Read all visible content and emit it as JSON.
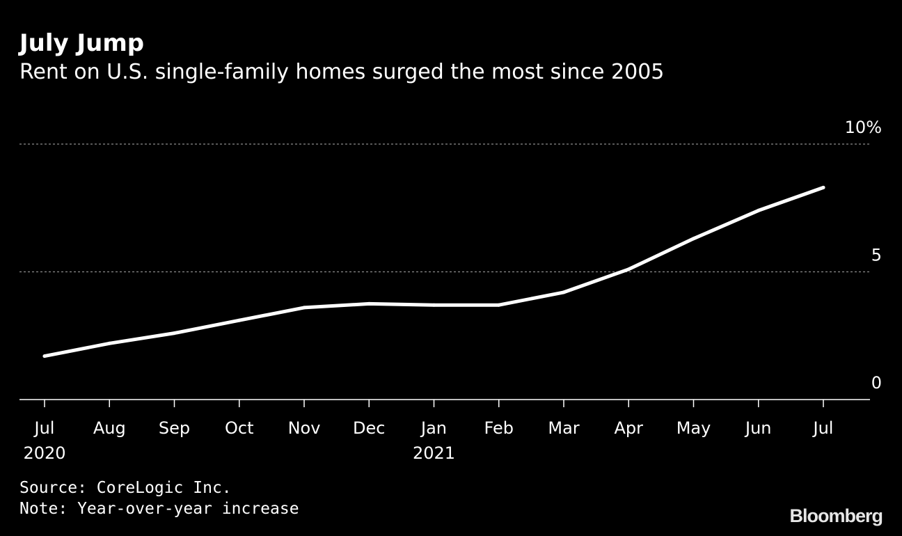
{
  "header": {
    "title": "July Jump",
    "subtitle": "Rent on U.S. single-family homes surged the most since 2005"
  },
  "chart_data": {
    "type": "line",
    "x": [
      "Jul",
      "Aug",
      "Sep",
      "Oct",
      "Nov",
      "Dec",
      "Jan",
      "Feb",
      "Mar",
      "Apr",
      "May",
      "Jun",
      "Jul"
    ],
    "year_labels": [
      "2020",
      "",
      "",
      "",
      "",
      "",
      "2021",
      "",
      "",
      "",
      "",
      "",
      ""
    ],
    "series": [
      {
        "values": [
          1.7,
          2.2,
          2.6,
          3.1,
          3.6,
          3.75,
          3.7,
          3.7,
          4.2,
          5.1,
          6.3,
          7.4,
          8.3
        ]
      }
    ],
    "y_ticks": [
      {
        "value": 10,
        "label": "10%"
      },
      {
        "value": 5,
        "label": "5"
      },
      {
        "value": 0,
        "label": "0"
      }
    ],
    "ylim": [
      0,
      10
    ],
    "y_axis_side": "right",
    "grid": "dotted horizontal",
    "line_color": "#ffffff",
    "background": "#000000"
  },
  "footer": {
    "source": "Source: CoreLogic Inc.",
    "note": "Note: Year-over-year increase",
    "brand": "Bloomberg"
  }
}
